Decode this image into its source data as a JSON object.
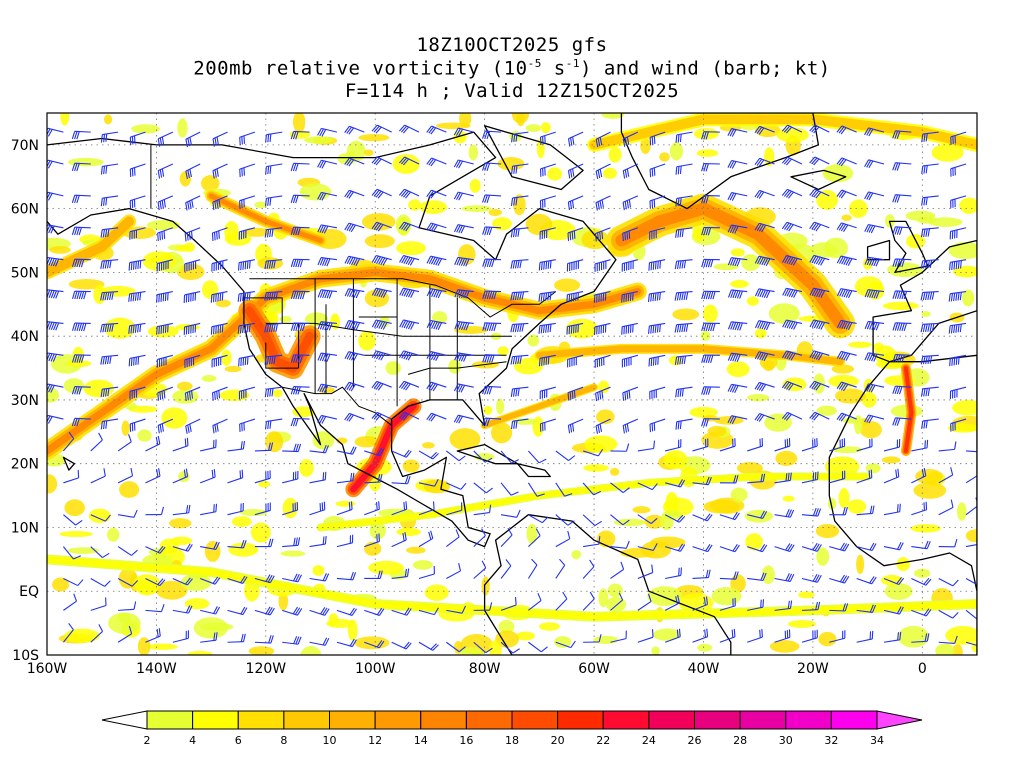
{
  "title": {
    "line1": "18Z10OCT2025 gfs",
    "line2_pre": "200mb relative vorticity (10",
    "line2_exp1": "-5",
    "line2_mid": " s",
    "line2_exp2": "-1",
    "line2_post": ") and wind (barb; kt)",
    "line3": "F=114 h ; Valid 12Z15OCT2025"
  },
  "axes": {
    "lat_labels": [
      "70N",
      "60N",
      "50N",
      "40N",
      "30N",
      "20N",
      "10N",
      "EQ",
      "10S"
    ],
    "lat_values": [
      70,
      60,
      50,
      40,
      30,
      20,
      10,
      0,
      -10
    ],
    "lon_labels": [
      "160W",
      "140W",
      "120W",
      "100W",
      "80W",
      "60W",
      "40W",
      "20W",
      "0"
    ],
    "lon_values": [
      -160,
      -140,
      -120,
      -100,
      -80,
      -60,
      -40,
      -20,
      0
    ],
    "lon_range": [
      -160,
      10
    ],
    "lat_range": [
      -10,
      75
    ]
  },
  "colorbar": {
    "levels": [
      "2",
      "4",
      "6",
      "8",
      "10",
      "12",
      "14",
      "16",
      "18",
      "20",
      "22",
      "24",
      "26",
      "28",
      "30",
      "32",
      "34"
    ],
    "colors": [
      "#e6ff33",
      "#ffff00",
      "#ffe000",
      "#ffc800",
      "#ffb000",
      "#ff9a00",
      "#ff8400",
      "#ff6a00",
      "#ff4c00",
      "#ff2a00",
      "#ff0a30",
      "#f2005a",
      "#e8007e",
      "#e800a2",
      "#f000c8",
      "#ff00ee"
    ],
    "under_color": "#ffffff",
    "over_color": "#ff44ff"
  },
  "colors": {
    "land": "#000000",
    "barbs": "#2233ee",
    "grid": "#777777"
  }
}
